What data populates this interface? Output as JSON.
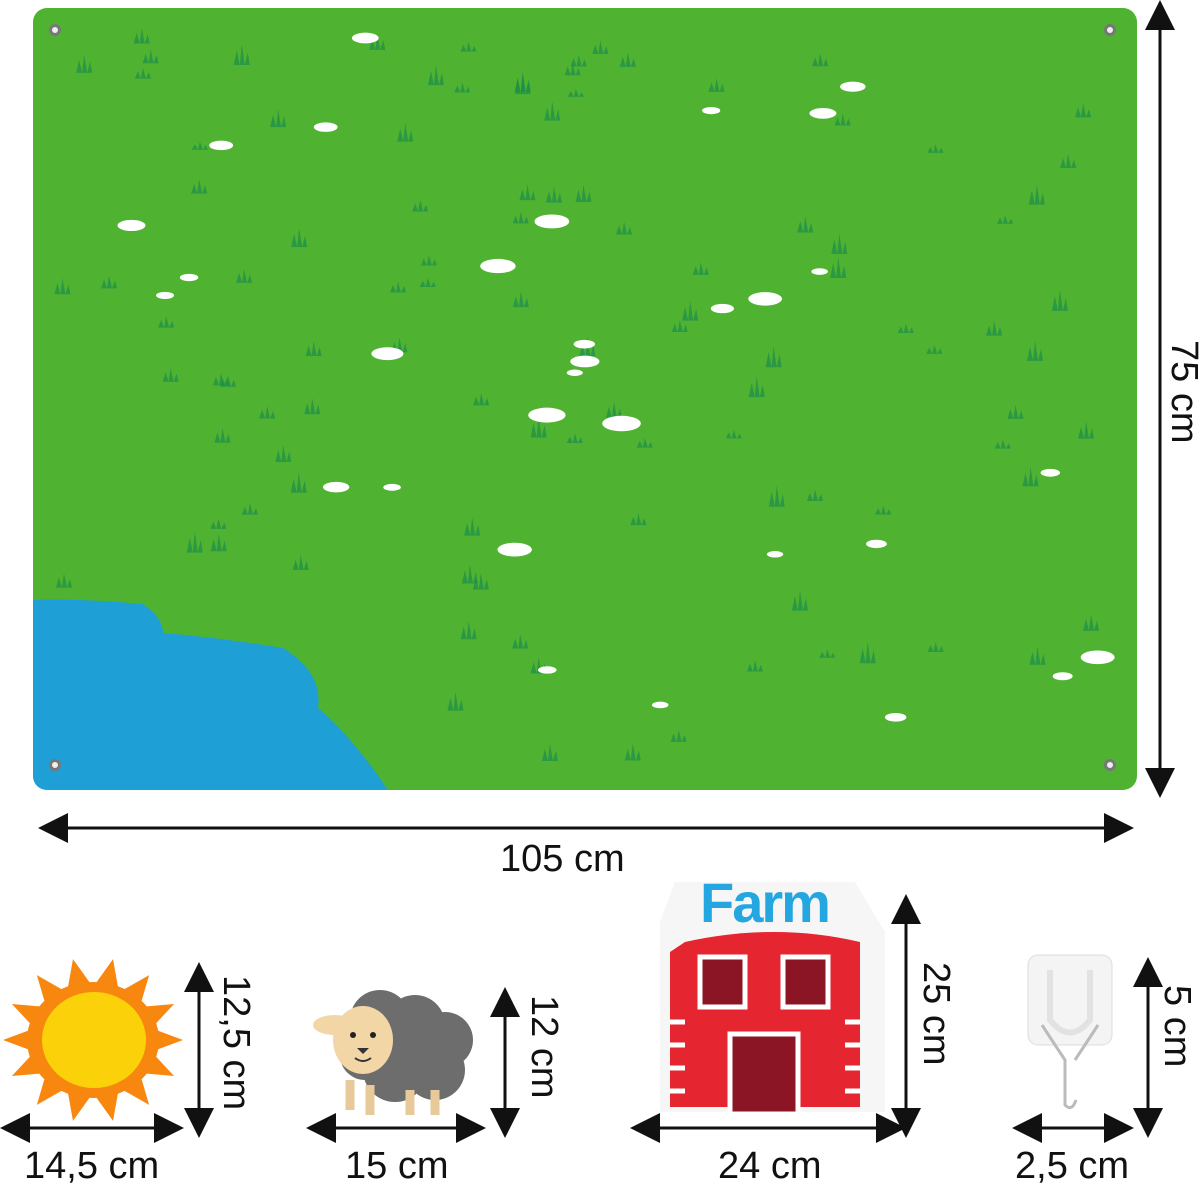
{
  "board": {
    "width_label": "105 cm",
    "height_label": "75 cm",
    "colors": {
      "felt": "#4fb331",
      "pond": "#1e9fd6",
      "grass": "#1f8f4a",
      "flower": "#ffffff"
    }
  },
  "pieces": [
    {
      "name": "sun",
      "width_label": "14,5 cm",
      "height_label": "12,5 cm"
    },
    {
      "name": "sheep",
      "width_label": "15 cm",
      "height_label": "12 cm"
    },
    {
      "name": "barn",
      "sign_text": "Farm",
      "width_label": "24 cm",
      "height_label": "25 cm"
    },
    {
      "name": "hook",
      "width_label": "2,5 cm",
      "height_label": "5 cm"
    }
  ]
}
